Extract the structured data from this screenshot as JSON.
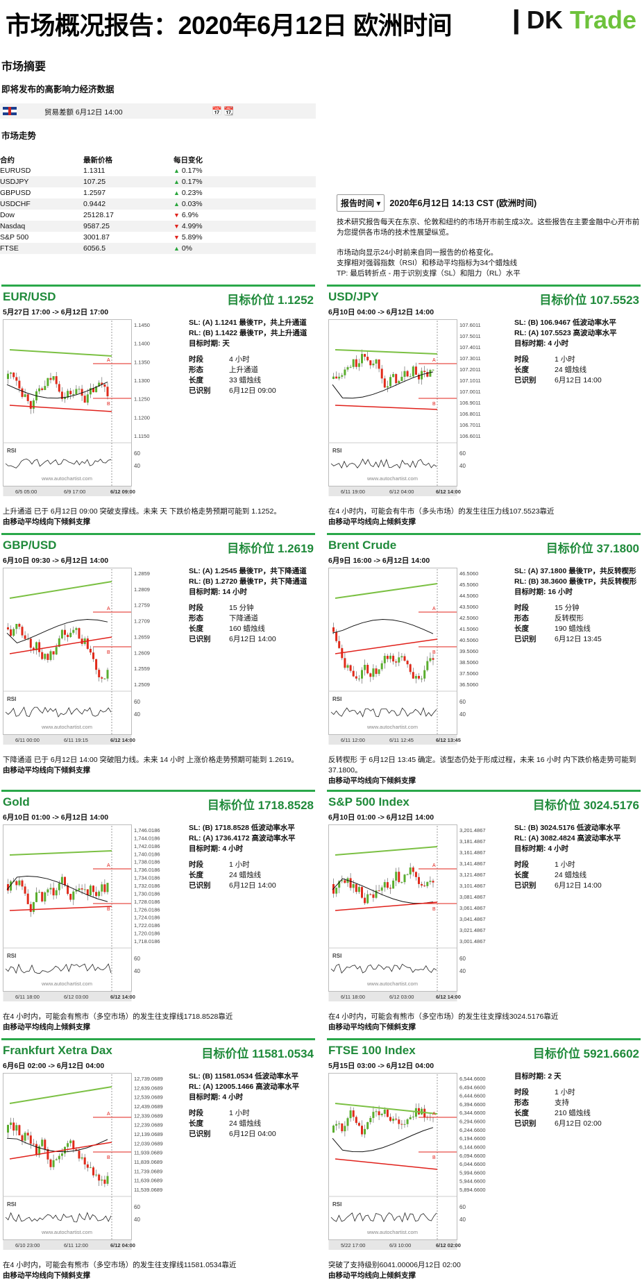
{
  "header": {
    "title": "市场概况报告：2020年6月12日 欧洲时间",
    "logo_dk": "❙DK",
    "logo_trade": "Trade"
  },
  "summary": {
    "heading": "市场摘要",
    "events_heading": "即将发布的高影响力经济数据",
    "event": {
      "name": "贸易差额 6月12日 14:00"
    },
    "trend_heading": "市场走势",
    "table_headers": [
      "合约",
      "最新价格",
      "每日变化"
    ],
    "rows": [
      {
        "name": "EURUSD",
        "price": "1.1311",
        "dir": "up",
        "change": "0.17%"
      },
      {
        "name": "USDJPY",
        "price": "107.25",
        "dir": "up",
        "change": "0.17%"
      },
      {
        "name": "GBPUSD",
        "price": "1.2597",
        "dir": "up",
        "change": "0.23%"
      },
      {
        "name": "USDCHF",
        "price": "0.9442",
        "dir": "up",
        "change": "0.03%"
      },
      {
        "name": "Dow",
        "price": "25128.17",
        "dir": "down",
        "change": "6.9%"
      },
      {
        "name": "Nasdaq",
        "price": "9587.25",
        "dir": "down",
        "change": "4.99%"
      },
      {
        "name": "S&P 500",
        "price": "3001.87",
        "dir": "down",
        "change": "5.89%"
      },
      {
        "name": "FTSE",
        "price": "6056.5",
        "dir": "up",
        "change": "0%"
      }
    ]
  },
  "report": {
    "button": "报告时间",
    "date": "2020年6月12日  14:13 CST (欧洲时间)",
    "p1": "技术研究报告每天在东京、伦敦和纽约的市场开市前生成3次。这些报告在主要金融中心开市前为您提供各市场的技术性展望纵览。",
    "p2a": "市场动向显示24小时前来自同一报告的价格变化。",
    "p2b": "支撑相对强弱指数（RSI）和移动平均指标为34个蜡烛线",
    "p2c": "TP: 最后转折点 - 用于识别支撑（SL）和阻力（RL）水平"
  },
  "labels": {
    "period": "时段",
    "form": "形态",
    "length": "长度",
    "identified": "已识别",
    "target_time": "目标时期",
    "rsi": "RSI",
    "watermark": "www.autochartist.com"
  },
  "panels": [
    {
      "title": "EUR/USD",
      "target": "目标价位 1.1252",
      "range": "5月27日 17:00 -> 6月12日 17:00",
      "sl": "SL: (A) 1.1241 最後TP，共上升通道",
      "rl": "RL: (B) 1.1422 最後TP，共上升通道",
      "target_time": "目标时期: 天",
      "period": "4 小时",
      "form": "上升通道",
      "length": "33 蜡烛线",
      "identified": "6月12日 09:00",
      "desc": "上升通道 已于 6月12日 09:00 突破支撑线。未来 天 下跌价格走势预期可能到 1.1252。",
      "desc2": "由移动平均线向下倾斜支撑",
      "y_ticks": [
        "1.1450",
        "1.1400",
        "1.1350",
        "1.1300",
        "1.1250",
        "1.1200",
        "1.1150"
      ],
      "x_ticks": [
        "6/5 05:00",
        "6/9 17:00",
        "6/12 09:00"
      ],
      "rsi_ticks": [
        "60",
        "40"
      ]
    },
    {
      "title": "USD/JPY",
      "target": "目标价位 107.5523",
      "range": "6月10日 04:00 -> 6月12日 14:00",
      "sl": "SL: (B) 106.9467 低波动率水平",
      "rl": "RL: (A) 107.5523 高波动率水平",
      "target_time": "目标时期: 4 小时",
      "period": "1 小时",
      "form": "",
      "length": "24 蜡烛线",
      "identified": "6月12日 14:00",
      "desc": "在4 小时内，可能会有牛市（多头市场）的发生往压力线107.5523靠近",
      "desc2": "由移动平均线向上倾斜支撑",
      "y_ticks": [
        "107.6011",
        "107.5011",
        "107.4011",
        "107.3011",
        "107.2011",
        "107.1011",
        "107.0011",
        "106.9011",
        "106.8011",
        "106.7011",
        "106.6011"
      ],
      "x_ticks": [
        "6/11 19:00",
        "6/12 04:00",
        "6/12 14:00"
      ],
      "rsi_ticks": [
        "60",
        "40"
      ]
    },
    {
      "title": "GBP/USD",
      "target": "目标价位 1.2619",
      "range": "6月10日 09:30 -> 6月12日 14:00",
      "sl": "SL: (A) 1.2545 最後TP，共下降通道",
      "rl": "RL: (B) 1.2720 最後TP，共下降通道",
      "target_time": "目标时期: 14 小时",
      "period": "15 分钟",
      "form": "下降通道",
      "length": "160 蜡烛线",
      "identified": "6月12日 14:00",
      "desc": "下降通道 已于 6月12日 14:00 突破阻力线。未来 14 小时 上涨价格走势预期可能到 1.2619。",
      "desc2": "由移动平均线向下倾斜支撑",
      "y_ticks": [
        "1.2859",
        "1.2809",
        "1.2759",
        "1.2709",
        "1.2659",
        "1.2609",
        "1.2559",
        "1.2509"
      ],
      "x_ticks": [
        "6/11 00:00",
        "6/11 19:15",
        "6/12 14:00"
      ],
      "rsi_ticks": [
        "60",
        "40"
      ]
    },
    {
      "title": "Brent Crude",
      "target": "目标价位 37.1800",
      "range": "6月9日 16:00 -> 6月12日 14:00",
      "sl": "SL: (A) 37.1800 最後TP，共反转楔形",
      "rl": "RL: (B) 38.3600 最後TP，共反转楔形",
      "target_time": "目标时期: 16 小时",
      "period": "15 分钟",
      "form": "反转楔形",
      "length": "190 蜡烛线",
      "identified": "6月12日 13:45",
      "desc": "反转楔形 于 6月12日 13:45 确定。该型态仍处于形成过程，未来 16 小时 内下跌价格走势可能到 37.1800。",
      "desc2": "由移动平均线向下倾斜支撑",
      "y_ticks": [
        "46.5060",
        "45.5060",
        "44.5060",
        "43.5060",
        "42.5060",
        "41.5060",
        "40.5060",
        "39.5060",
        "38.5060",
        "37.5060",
        "36.5060"
      ],
      "x_ticks": [
        "6/11 12:00",
        "6/11 12:45",
        "6/12 13:45"
      ],
      "rsi_ticks": [
        "60",
        "40"
      ]
    },
    {
      "title": "Gold",
      "target": "目标价位 1718.8528",
      "range": "6月10日 01:00 -> 6月12日 14:00",
      "sl": "SL: (B) 1718.8528 低波动率水平",
      "rl": "RL: (A) 1736.4172 高波动率水平",
      "target_time": "目标时期: 4 小时",
      "period": "1 小时",
      "form": "",
      "length": "24 蜡烛线",
      "identified": "6月12日 14:00",
      "desc": "在4 小时内，可能会有熊市（多空市场）的发生往支撑线1718.8528靠近",
      "desc2": "由移动平均线向上倾斜支撑",
      "y_ticks": [
        "1,746.0186",
        "1,744.0186",
        "1,742.0186",
        "1,740.0186",
        "1,738.0186",
        "1,736.0186",
        "1,734.0186",
        "1,732.0186",
        "1,730.0186",
        "1,728.0186",
        "1,726.0186",
        "1,724.0186",
        "1,722.0186",
        "1,720.0186",
        "1,718.0186"
      ],
      "x_ticks": [
        "6/11 18:00",
        "6/12 03:00",
        "6/12 14:00"
      ],
      "rsi_ticks": [
        "60",
        "40"
      ]
    },
    {
      "title": "S&P 500 Index",
      "target": "目标价位 3024.5176",
      "range": "6月10日 01:00 -> 6月12日 14:00",
      "sl": "SL: (B) 3024.5176 低波动率水平",
      "rl": "RL: (A) 3082.4824 高波动率水平",
      "target_time": "目标时期: 4 小时",
      "period": "1 小时",
      "form": "",
      "length": "24 蜡烛线",
      "identified": "6月12日 14:00",
      "desc": "在4 小时内，可能会有熊市（多空市场）的发生往支撑线3024.5176靠近",
      "desc2": "由移动平均线向下倾斜支撑",
      "y_ticks": [
        "3,201.4867",
        "3,181.4867",
        "3,161.4867",
        "3,141.4867",
        "3,121.4867",
        "3,101.4867",
        "3,081.4867",
        "3,061.4867",
        "3,041.4867",
        "3,021.4867",
        "3,001.4867"
      ],
      "x_ticks": [
        "6/11 18:00",
        "6/12 03:00",
        "6/12 14:00"
      ],
      "rsi_ticks": [
        "60",
        "40"
      ]
    },
    {
      "title": "Frankfurt Xetra Dax",
      "target": "目标价位 11581.0534",
      "range": "6月6日 02:00 -> 6月12日 04:00",
      "sl": "SL: (B) 11581.0534 低波动率水平",
      "rl": "RL: (A) 12005.1466 高波动率水平",
      "target_time": "目标时期: 4 小时",
      "period": "1 小时",
      "form": "",
      "length": "24 蜡烛线",
      "identified": "6月12日 04:00",
      "desc": "在4 小时内，可能会有熊市（多空市场）的发生往支撑线11581.0534靠近",
      "desc2": "由移动平均线向下倾斜支撑",
      "y_ticks": [
        "12,739.0689",
        "12,639.0689",
        "12,539.0689",
        "12,439.0689",
        "12,339.0689",
        "12,239.0689",
        "12,139.0689",
        "12,039.0689",
        "11,939.0689",
        "11,839.0689",
        "11,739.0689",
        "11,639.0689",
        "11,539.0689"
      ],
      "x_ticks": [
        "6/10 23:00",
        "6/11 12:00",
        "6/12 04:00"
      ],
      "rsi_ticks": [
        "60",
        "40"
      ]
    },
    {
      "title": "FTSE 100 Index",
      "target": "目标价位 5921.6602",
      "range": "5月15日 03:00 -> 6月12日 04:00",
      "sl": "",
      "rl": "",
      "target_time": "目标时期: 2 天",
      "period": "1 小时",
      "form": "支持",
      "length": "210 蜡烛线",
      "identified": "6月12日 02:00",
      "desc": "突破了支持级别6041.00006月12日 02:00",
      "desc2": "由移动平均线向上倾斜支撑",
      "y_ticks": [
        "6,544.6600",
        "6,494.6600",
        "6,444.6600",
        "6,394.6600",
        "6,344.6600",
        "6,294.6600",
        "6,244.6600",
        "6,194.6600",
        "6,144.6600",
        "6,094.6600",
        "6,044.6600",
        "5,994.6600",
        "5,944.6600",
        "5,894.6600"
      ],
      "x_ticks": [
        "5/22 17:00",
        "6/3 10:00",
        "6/12 02:00"
      ],
      "rsi_ticks": [
        "60",
        "40"
      ]
    }
  ]
}
